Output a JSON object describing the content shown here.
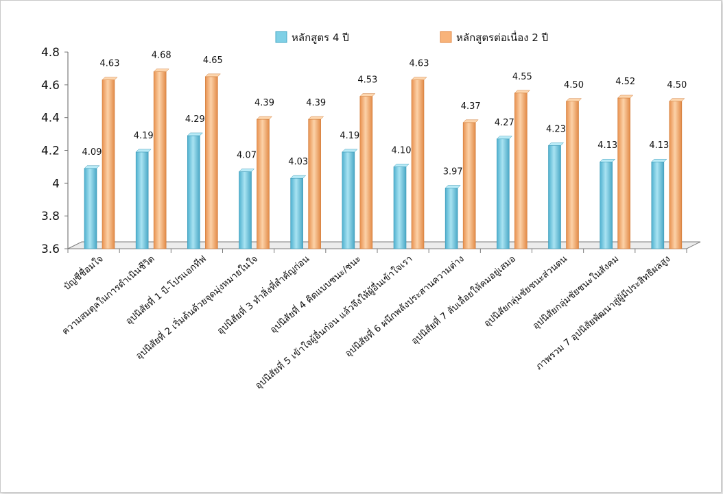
{
  "colors": {
    "series1": "#7fd0e6",
    "series2": "#f8b37a",
    "axis": "#7a7a7a"
  },
  "chart_data": {
    "type": "bar",
    "title": "",
    "xlabel": "",
    "ylabel": "",
    "ylim": [
      3.6,
      4.8
    ],
    "yticks": [
      "3.6",
      "3.8",
      "4",
      "4.2",
      "4.4",
      "4.6",
      "4.8"
    ],
    "grid": false,
    "legend_position": "top",
    "categories": [
      "บัญชีชื่อมใจ",
      "ความสมดุลในการดำเนินชีวิต",
      "อุปนิสัยที่ 1 บี-โปรแอกทีฟ",
      "อุปนิสัยที่ 2 เริ่มต้นด้วยจุดมุ่งหมายในใจ",
      "อุปนิสัยที่ 3 ทำสิ่งที่สำคัญก่อน",
      "อุปนิสัยที่ 4 คิดแบบชนะ/ชนะ",
      "อุปนิสัยที่ 5 เข้าใจผู้อื่นก่อน แล้วจึงให้ผู้อื่นเข้าใจเรา",
      "อุปนิสัยที่ 6 ผนึกพลังประสานความต่าง",
      "อุปนิสัยที่ 7 ลับเลื่อยให้คมอยู่เสมอ",
      "อุปนิสัยกลุ่มชัยชนะส่วนตน",
      "อุปนิสัยกลุ่มชัยชนะในสังคม",
      "ภาพรวม 7 อุปนิสัยพัฒนาสู่ผู้มีประสิทธิผลสูง"
    ],
    "series": [
      {
        "name": "หลักสูตร 4 ปี",
        "values": [
          4.09,
          4.19,
          4.29,
          4.07,
          4.03,
          4.19,
          4.1,
          3.97,
          4.27,
          4.23,
          4.13,
          4.13
        ],
        "labels": [
          "4.09",
          "4.19",
          "4.29",
          "4.07",
          "4.03",
          "4.19",
          "4.10",
          "3.97",
          "4.27",
          "4.23",
          "4.13",
          "4.13"
        ]
      },
      {
        "name": "หลักสูตรต่อเนื่อง 2 ปี",
        "values": [
          4.63,
          4.68,
          4.65,
          4.39,
          4.39,
          4.53,
          4.63,
          4.37,
          4.55,
          4.5,
          4.52,
          4.5
        ],
        "labels": [
          "4.63",
          "4.68",
          "4.65",
          "4.39",
          "4.39",
          "4.53",
          "4.63",
          "4.37",
          "4.55",
          "4.50",
          "4.52",
          "4.50"
        ]
      }
    ]
  }
}
